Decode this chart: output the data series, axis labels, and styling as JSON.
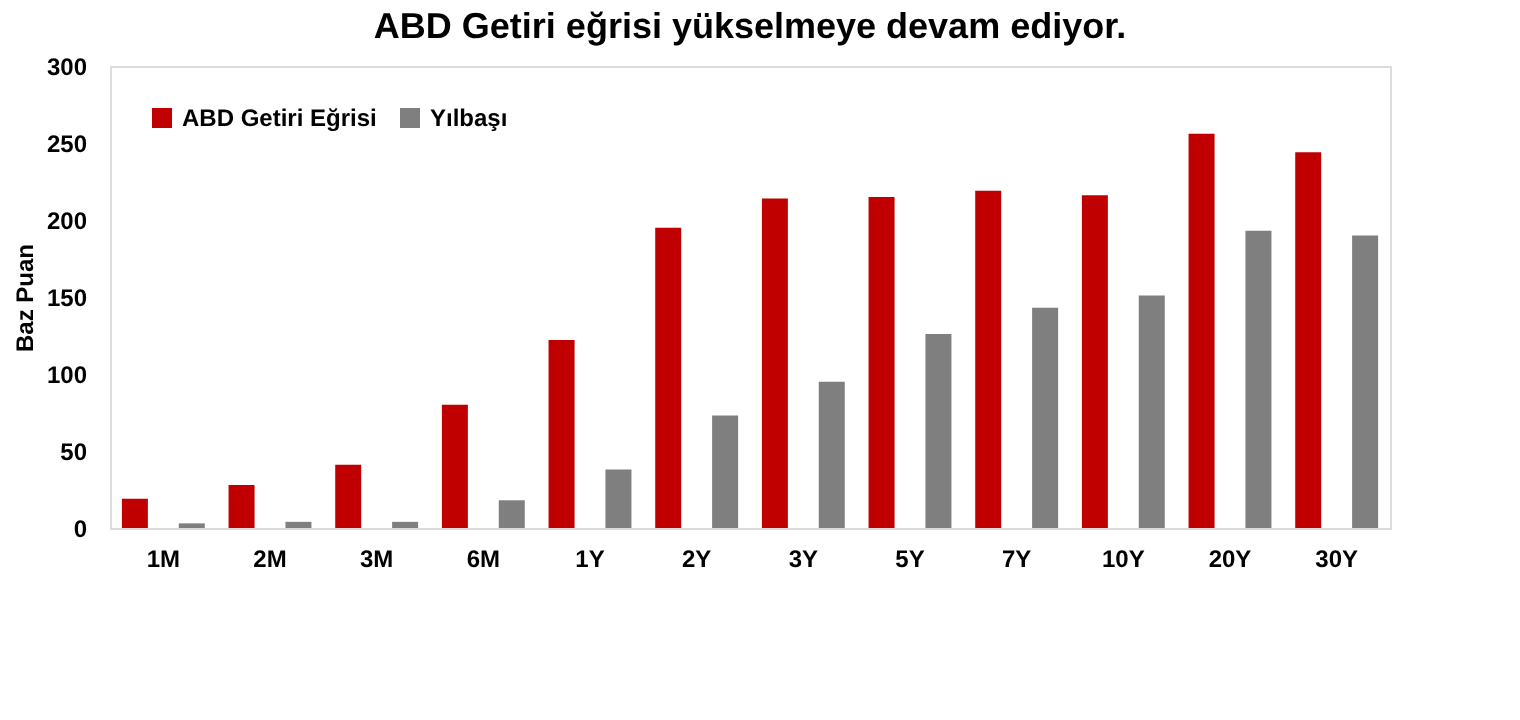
{
  "chart_data": {
    "type": "bar",
    "title": "ABD Getiri eğrisi yükselmeye devam ediyor.",
    "ylabel": "Baz Puan",
    "categories": [
      "1M",
      "2M",
      "3M",
      "6M",
      "1Y",
      "2Y",
      "3Y",
      "5Y",
      "7Y",
      "10Y",
      "20Y",
      "30Y"
    ],
    "series": [
      {
        "name": "ABD Getiri Eğrisi",
        "color": "#c00000",
        "values": [
          19,
          28,
          41,
          80,
          122,
          195,
          214,
          215,
          219,
          216,
          256,
          244
        ]
      },
      {
        "name": "Yılbaşı",
        "color": "#7f7f7f",
        "values": [
          3,
          4,
          4,
          18,
          38,
          73,
          95,
          126,
          143,
          151,
          193,
          190
        ]
      }
    ],
    "ylim": [
      0,
      300
    ],
    "yticks": [
      0,
      50,
      100,
      150,
      200,
      250,
      300
    ],
    "grid": false,
    "legend": "top left"
  }
}
